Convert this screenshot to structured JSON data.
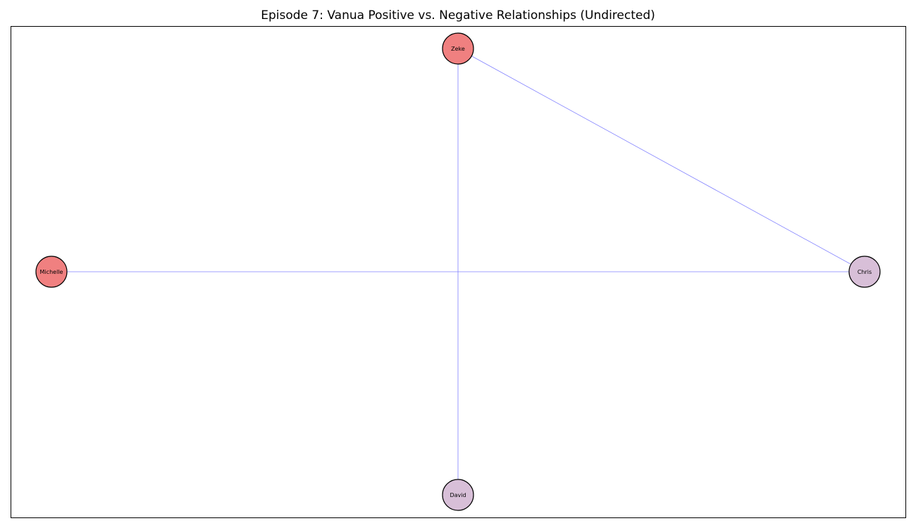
{
  "title": "Episode 7: Vanua Positive vs. Negative Relationships (Undirected)",
  "graph": {
    "nodes": [
      {
        "id": "Zeke",
        "label": "Zeke",
        "color": "#f08080"
      },
      {
        "id": "Michelle",
        "label": "Michelle",
        "color": "#f08080"
      },
      {
        "id": "Chris",
        "label": "Chris",
        "color": "#d8bfd8"
      },
      {
        "id": "David",
        "label": "David",
        "color": "#d8bfd8"
      }
    ],
    "edges": [
      {
        "source": "Zeke",
        "target": "Chris"
      },
      {
        "source": "Zeke",
        "target": "David"
      },
      {
        "source": "Michelle",
        "target": "Chris"
      }
    ],
    "edge_color": "#8080ff",
    "node_border_color": "#000000"
  }
}
